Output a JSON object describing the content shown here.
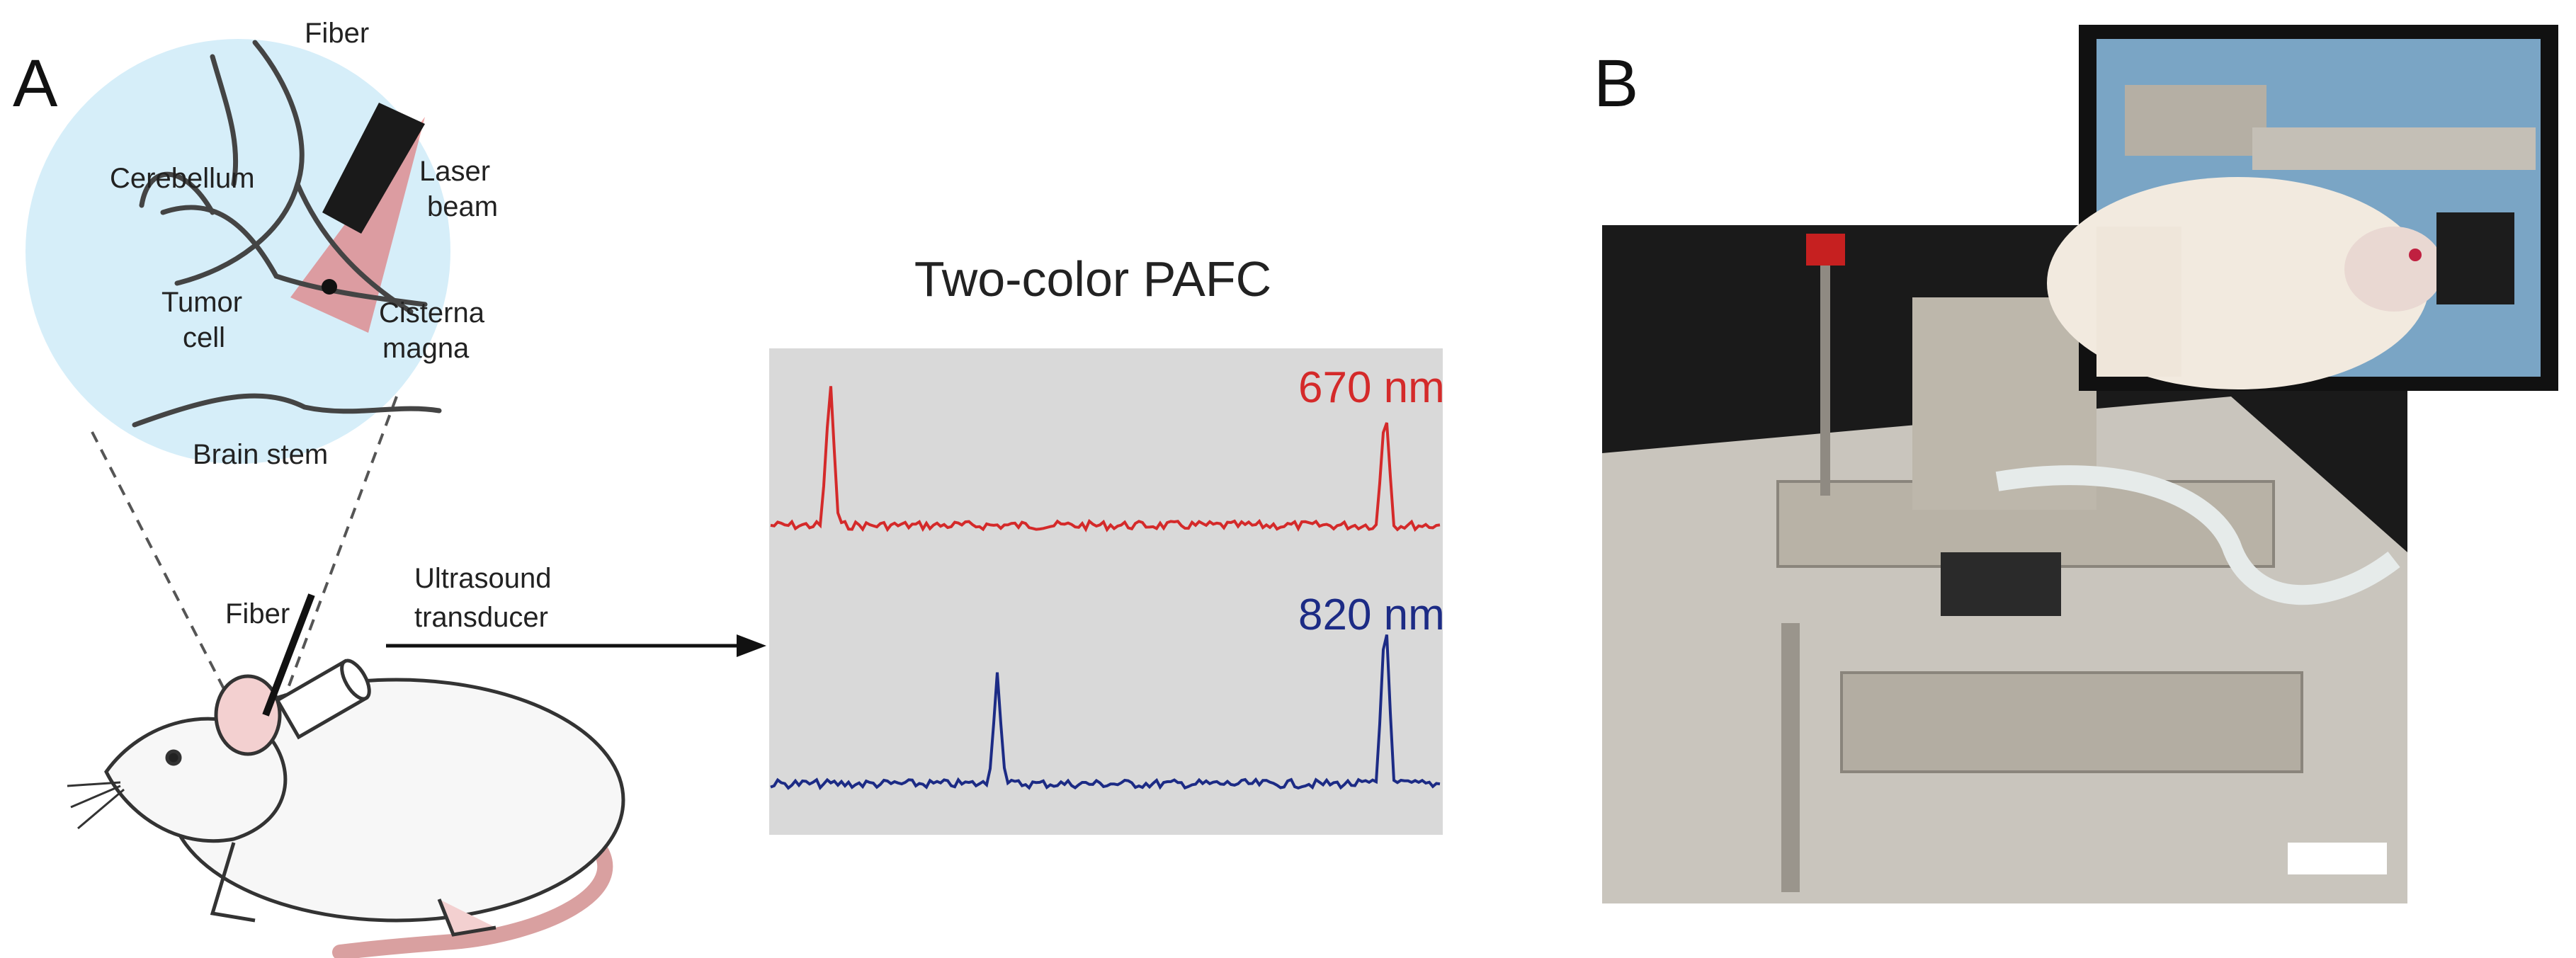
{
  "panel_a": {
    "label": "A",
    "inset_labels": {
      "fiber": "Fiber",
      "cerebellum": "Cerebellum",
      "laser_beam": [
        "Laser",
        "beam"
      ],
      "tumor_cell": [
        "Tumor",
        "cell"
      ],
      "cisterna_magna": [
        "Cisterna",
        "magna"
      ],
      "brain_stem": "Brain stem"
    },
    "fiber": "Fiber",
    "ultrasound_transducer": [
      "Ultrasound",
      "transducer"
    ],
    "plot": {
      "title": "Two-color PAFC",
      "traces": [
        {
          "label": "670 nm",
          "color": "#d42a2a"
        },
        {
          "label": "820 nm",
          "color": "#1c2b85"
        }
      ]
    }
  },
  "panel_b": {
    "label": "B"
  }
}
